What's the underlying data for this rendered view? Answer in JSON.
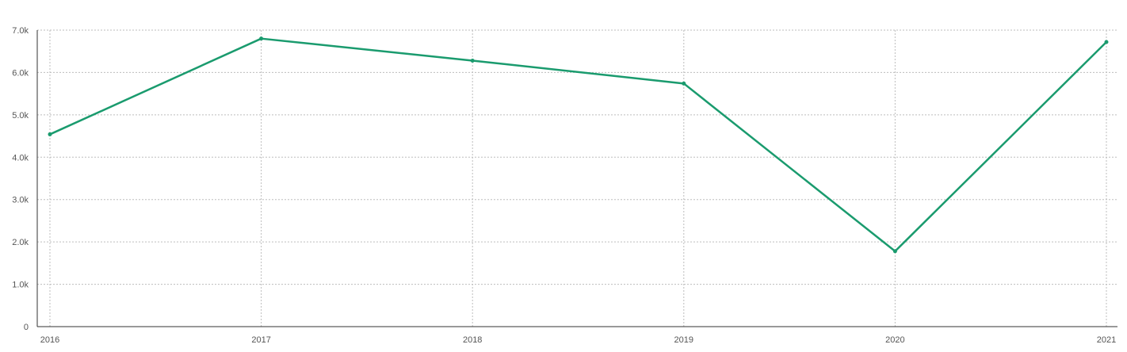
{
  "chart_data": {
    "type": "line",
    "title": "",
    "xlabel": "",
    "ylabel": "",
    "x": [
      "2016",
      "2017",
      "2018",
      "2019",
      "2020",
      "2021"
    ],
    "series": [
      {
        "values": [
          4540,
          6800,
          6280,
          5740,
          1780,
          6720
        ],
        "color": "#1a9b6e"
      }
    ],
    "ylim": [
      0,
      7000
    ],
    "y_ticks": [
      0,
      1000,
      2000,
      3000,
      4000,
      5000,
      6000,
      7000
    ],
    "y_tick_labels": [
      "0",
      "1.0k",
      "2.0k",
      "3.0k",
      "4.0k",
      "5.0k",
      "6.0k",
      "7.0k"
    ],
    "grid": true,
    "legend": "none"
  }
}
